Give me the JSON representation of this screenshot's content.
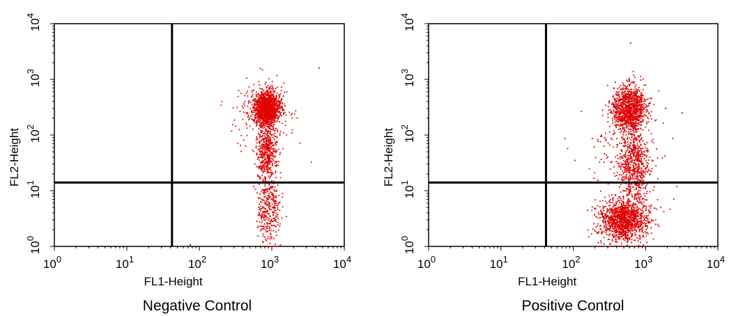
{
  "chart_data": [
    {
      "type": "scatter",
      "title": "Negative Control",
      "xlabel": "FL1-Height",
      "ylabel": "FL2-Height",
      "x_scale": "log",
      "y_scale": "log",
      "xlim": [
        1,
        10000
      ],
      "ylim": [
        1,
        10000
      ],
      "x_tick_labels": [
        {
          "base": "10",
          "exp": "0"
        },
        {
          "base": "10",
          "exp": "1"
        },
        {
          "base": "10",
          "exp": "2"
        },
        {
          "base": "10",
          "exp": "3"
        },
        {
          "base": "10",
          "exp": "4"
        }
      ],
      "y_tick_labels": [
        {
          "base": "10",
          "exp": "0"
        },
        {
          "base": "10",
          "exp": "1"
        },
        {
          "base": "10",
          "exp": "2"
        },
        {
          "base": "10",
          "exp": "3"
        },
        {
          "base": "10",
          "exp": "4"
        }
      ],
      "quadrant_gate": {
        "x": 42,
        "y": 14
      },
      "point_color": "#e00000",
      "populations": [
        {
          "center": [
            850,
            300
          ],
          "spread_log": [
            0.09,
            0.16
          ],
          "count": 1500
        },
        {
          "center": [
            850,
            50
          ],
          "spread_log": [
            0.07,
            0.25
          ],
          "count": 450
        },
        {
          "center": [
            900,
            5
          ],
          "spread_log": [
            0.08,
            0.35
          ],
          "count": 350
        },
        {
          "center": [
            750,
            200
          ],
          "spread_log": [
            0.25,
            0.35
          ],
          "count": 120
        }
      ],
      "outliers": [
        [
          1,
          1200
        ],
        [
          4500,
          1600
        ],
        [
          75,
          1.06
        ],
        [
          1450,
          500
        ]
      ]
    },
    {
      "type": "scatter",
      "title": "Positive Control",
      "xlabel": "FL1-Height",
      "ylabel": "FL2-Height",
      "x_scale": "log",
      "y_scale": "log",
      "xlim": [
        1,
        10000
      ],
      "ylim": [
        1,
        10000
      ],
      "x_tick_labels": [
        {
          "base": "10",
          "exp": "0"
        },
        {
          "base": "10",
          "exp": "1"
        },
        {
          "base": "10",
          "exp": "2"
        },
        {
          "base": "10",
          "exp": "3"
        },
        {
          "base": "10",
          "exp": "4"
        }
      ],
      "y_tick_labels": [
        {
          "base": "10",
          "exp": "0"
        },
        {
          "base": "10",
          "exp": "1"
        },
        {
          "base": "10",
          "exp": "2"
        },
        {
          "base": "10",
          "exp": "3"
        },
        {
          "base": "10",
          "exp": "4"
        }
      ],
      "quadrant_gate": {
        "x": 42,
        "y": 14
      },
      "point_color": "#e00000",
      "populations": [
        {
          "center": [
            600,
            300
          ],
          "spread_log": [
            0.12,
            0.2
          ],
          "count": 1100
        },
        {
          "center": [
            500,
            3
          ],
          "spread_log": [
            0.17,
            0.2
          ],
          "count": 1300
        },
        {
          "center": [
            700,
            30
          ],
          "spread_log": [
            0.1,
            0.3
          ],
          "count": 600
        },
        {
          "center": [
            550,
            50
          ],
          "spread_log": [
            0.3,
            0.4
          ],
          "count": 150
        }
      ],
      "outliers": [
        [
          620,
          4500
        ],
        [
          3200,
          250
        ],
        [
          1900,
          300
        ]
      ]
    }
  ]
}
